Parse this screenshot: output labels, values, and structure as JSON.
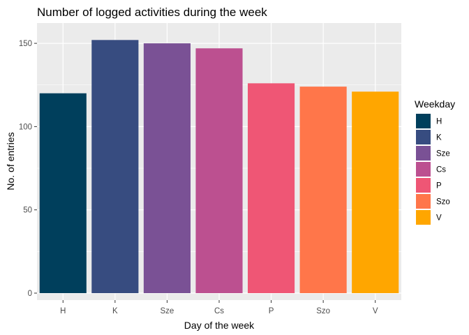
{
  "chart_data": {
    "type": "bar",
    "title": "Number of logged activities during the week",
    "xlabel": "Day of the week",
    "ylabel": "No. of entries",
    "categories": [
      "H",
      "K",
      "Sze",
      "Cs",
      "P",
      "Szo",
      "V"
    ],
    "values": [
      120,
      152,
      150,
      147,
      126,
      124,
      121
    ],
    "colors": [
      "#003f5c",
      "#374c80",
      "#7a5195",
      "#bc5090",
      "#ef5675",
      "#ff764a",
      "#ffa600"
    ],
    "ylim": [
      0,
      158
    ],
    "yticks": [
      0,
      50,
      100,
      150
    ],
    "grid": true,
    "legend": {
      "title": "Weekday",
      "position": "right",
      "entries": [
        "H",
        "K",
        "Sze",
        "Cs",
        "P",
        "Szo",
        "V"
      ]
    },
    "panel_background": "#ebebeb",
    "gridline_color": "#ffffff"
  }
}
